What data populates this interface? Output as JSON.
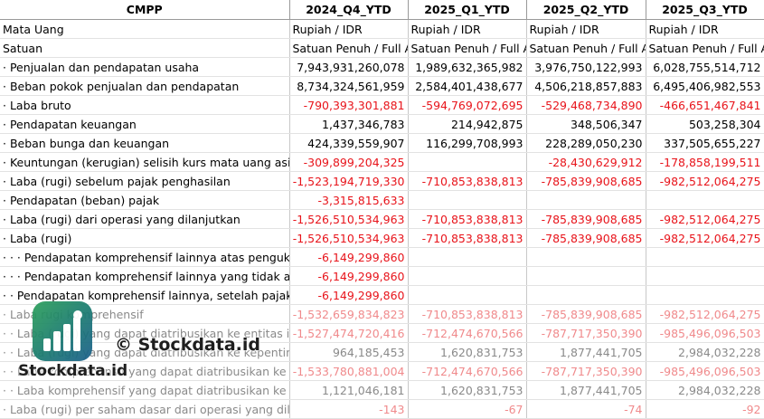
{
  "header": {
    "corner": "CMPP",
    "periods": [
      "2024_Q4_YTD",
      "2025_Q1_YTD",
      "2025_Q2_YTD",
      "2025_Q3_YTD"
    ]
  },
  "meta_rows": [
    {
      "label": "Mata Uang",
      "values": [
        "Rupiah / IDR",
        "Rupiah / IDR",
        "Rupiah / IDR",
        "Rupiah / IDR"
      ]
    },
    {
      "label": "Satuan",
      "values": [
        "Satuan Penuh / Full A",
        "Satuan Penuh / Full A",
        "Satuan Penuh / Full A",
        "Satuan Penuh / Full A"
      ]
    }
  ],
  "rows": [
    {
      "label": "· Penjualan dan pendapatan usaha",
      "values": [
        "7,943,931,260,078",
        "1,989,632,365,982",
        "3,976,750,122,993",
        "6,028,755,514,712"
      ]
    },
    {
      "label": "· Beban pokok penjualan dan pendapatan",
      "values": [
        "8,734,324,561,959",
        "2,584,401,438,677",
        "4,506,218,857,883",
        "6,495,406,982,553"
      ]
    },
    {
      "label": "· Laba bruto",
      "values": [
        "-790,393,301,881",
        "-594,769,072,695",
        "-529,468,734,890",
        "-466,651,467,841"
      ]
    },
    {
      "label": "· Pendapatan keuangan",
      "values": [
        "1,437,346,783",
        "214,942,875",
        "348,506,347",
        "503,258,304"
      ]
    },
    {
      "label": "· Beban bunga dan keuangan",
      "values": [
        "424,339,559,907",
        "116,299,708,993",
        "228,289,050,230",
        "337,505,655,227"
      ]
    },
    {
      "label": "· Keuntungan (kerugian) selisih kurs mata uang asing",
      "values": [
        "-309,899,204,325",
        "",
        "-28,430,629,912",
        "-178,858,199,511"
      ]
    },
    {
      "label": "· Laba (rugi) sebelum pajak penghasilan",
      "values": [
        "-1,523,194,719,330",
        "-710,853,838,813",
        "-785,839,908,685",
        "-982,512,064,275"
      ]
    },
    {
      "label": "· Pendapatan (beban) pajak",
      "values": [
        "-3,315,815,633",
        "",
        "",
        ""
      ]
    },
    {
      "label": "· Laba (rugi) dari operasi yang dilanjutkan",
      "values": [
        "-1,526,510,534,963",
        "-710,853,838,813",
        "-785,839,908,685",
        "-982,512,064,275"
      ]
    },
    {
      "label": "· Laba (rugi)",
      "values": [
        "-1,526,510,534,963",
        "-710,853,838,813",
        "-785,839,908,685",
        "-982,512,064,275"
      ]
    },
    {
      "label": "· · · Pendapatan komprehensif lainnya atas pengukuran",
      "values": [
        "-6,149,299,860",
        "",
        "",
        ""
      ]
    },
    {
      "label": "· · · Pendapatan komprehensif lainnya yang tidak akan",
      "values": [
        "-6,149,299,860",
        "",
        "",
        ""
      ]
    },
    {
      "label": "· · Pendapatan komprehensif lainnya, setelah pajak",
      "values": [
        "-6,149,299,860",
        "",
        "",
        ""
      ]
    },
    {
      "label": "· Laba rugi komprehensif",
      "values": [
        "-1,532,659,834,823",
        "-710,853,838,813",
        "-785,839,908,685",
        "-982,512,064,275"
      ],
      "faded": true
    },
    {
      "label": "· · Laba (rugi) yang dapat diatribusikan ke entitas induk",
      "values": [
        "-1,527,474,720,416",
        "-712,474,670,566",
        "-787,717,350,390",
        "-985,496,096,503"
      ],
      "faded": true
    },
    {
      "label": "· · Laba (rugi) yang dapat diatribusikan ke kepentingan",
      "values": [
        "964,185,453",
        "1,620,831,753",
        "1,877,441,705",
        "2,984,032,228"
      ],
      "faded": true
    },
    {
      "label": "· · Laba komprehensif yang dapat diatribusikan ke",
      "values": [
        "-1,533,780,881,004",
        "-712,474,670,566",
        "-787,717,350,390",
        "-985,496,096,503"
      ],
      "faded": true
    },
    {
      "label": "· · Laba komprehensif yang dapat diatribusikan ke",
      "values": [
        "1,121,046,181",
        "1,620,831,753",
        "1,877,441,705",
        "2,984,032,228"
      ],
      "faded": true
    },
    {
      "label": "· Laba (rugi) per saham dasar dari operasi yang dilanjutkan",
      "values": [
        "-143",
        "-67",
        "-74",
        "-92"
      ],
      "faded": true
    }
  ],
  "watermark": {
    "copyright_text": "© Stockdata.id",
    "brand_text": "Stockdata.id",
    "logo_icon": "stockdata-bar-chart-logo-icon",
    "logo_gradient": [
      "#2ca05a",
      "#1a5f8c"
    ]
  },
  "colors": {
    "negative": "#e8141b",
    "faded_text": "#8a8a8a"
  }
}
